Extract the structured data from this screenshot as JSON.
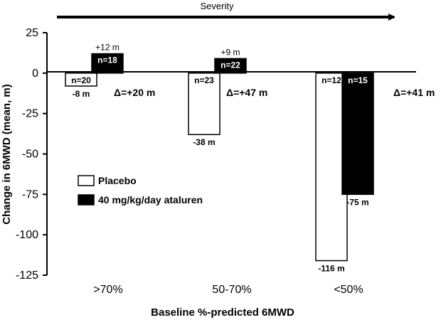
{
  "chart_data": {
    "type": "bar",
    "title": "",
    "severity_label": "Severity",
    "xlabel": "Baseline %-predicted 6MWD",
    "ylabel": "Change in 6MWD (mean, m)",
    "ylim": [
      -125,
      25
    ],
    "yticks": [
      "25",
      "0",
      "-25",
      "-50",
      "-75",
      "-100",
      "-125"
    ],
    "categories": [
      ">70%",
      "50-70%",
      "<50%"
    ],
    "series": [
      {
        "name": "Placebo",
        "color": "#ffffff",
        "values": [
          -8,
          -38,
          -116
        ],
        "value_labels": [
          "-8 m",
          "-38 m",
          "-116 m"
        ],
        "n_labels": [
          "n=20",
          "n=23",
          "n=12"
        ]
      },
      {
        "name": "40 mg/kg/day ataluren",
        "color": "#000000",
        "values": [
          12,
          9,
          -75
        ],
        "value_labels": [
          "+12 m",
          "+9 m",
          "-75 m"
        ],
        "n_labels": [
          "n=18",
          "n=22",
          "n=15"
        ]
      }
    ],
    "deltas": [
      "Δ=+20 m",
      "Δ=+47 m",
      "Δ=+41 m"
    ],
    "legend": [
      "Placebo",
      "40 mg/kg/day ataluren"
    ],
    "legend_position": "lower-left",
    "grid": false
  }
}
